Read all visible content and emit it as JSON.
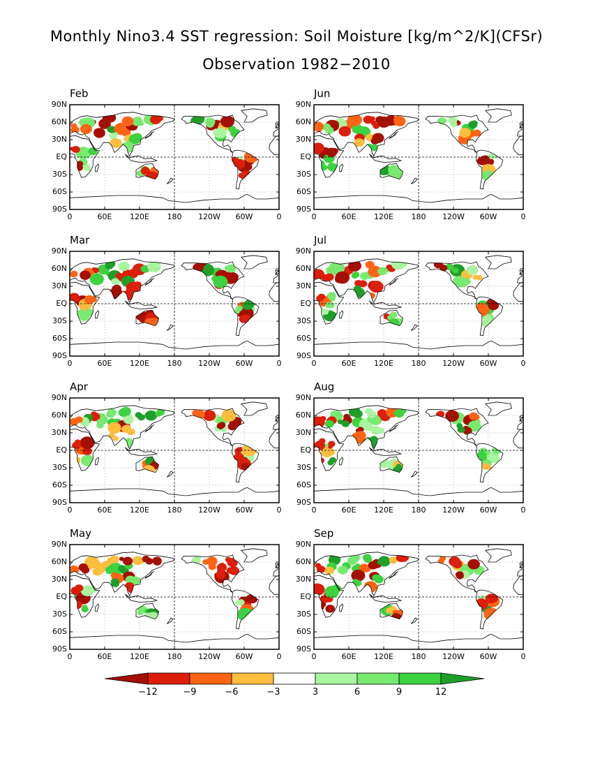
{
  "title": "Monthly Nino3.4 SST regression: Soil Moisture [kg/m^2/K](CFSr)",
  "subtitle": "Observation 1982−2010",
  "panels": [
    {
      "month": "Feb",
      "pattern": 0
    },
    {
      "month": "Jun",
      "pattern": 4
    },
    {
      "month": "Mar",
      "pattern": 1
    },
    {
      "month": "Jul",
      "pattern": 5
    },
    {
      "month": "Apr",
      "pattern": 2
    },
    {
      "month": "Aug",
      "pattern": 6
    },
    {
      "month": "May",
      "pattern": 3
    },
    {
      "month": "Sep",
      "pattern": 7
    }
  ],
  "y_ticks": [
    "90N",
    "60N",
    "30N",
    "EQ",
    "30S",
    "60S",
    "90S"
  ],
  "x_ticks": [
    "0",
    "60E",
    "120E",
    "180",
    "120W",
    "60W",
    "0"
  ],
  "colorbar": {
    "labels": [
      "−12",
      "−9",
      "−6",
      "−3",
      "3",
      "6",
      "9",
      "12"
    ],
    "colors": [
      "#a50f00",
      "#dc1e0a",
      "#ff6414",
      "#ffbe3c",
      "#ffffff",
      "#aaf5a0",
      "#78ea70",
      "#3cd240",
      "#1ea028"
    ]
  }
}
